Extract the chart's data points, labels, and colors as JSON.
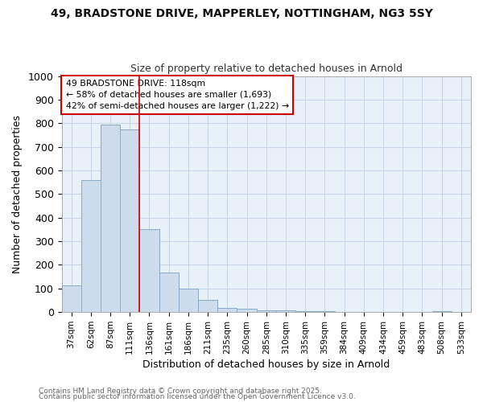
{
  "title1": "49, BRADSTONE DRIVE, MAPPERLEY, NOTTINGHAM, NG3 5SY",
  "title2": "Size of property relative to detached houses in Arnold",
  "xlabel": "Distribution of detached houses by size in Arnold",
  "ylabel": "Number of detached properties",
  "categories": [
    "37sqm",
    "62sqm",
    "87sqm",
    "111sqm",
    "136sqm",
    "161sqm",
    "186sqm",
    "211sqm",
    "235sqm",
    "260sqm",
    "285sqm",
    "310sqm",
    "335sqm",
    "359sqm",
    "384sqm",
    "409sqm",
    "434sqm",
    "459sqm",
    "483sqm",
    "508sqm",
    "533sqm"
  ],
  "values": [
    113,
    560,
    795,
    775,
    350,
    167,
    98,
    52,
    18,
    13,
    8,
    6,
    4,
    3,
    1,
    1,
    1,
    1,
    1,
    5,
    1
  ],
  "bar_color": "#ccdcec",
  "bar_edge_color": "#88aac8",
  "annotation_title": "49 BRADSTONE DRIVE: 118sqm",
  "annotation_line1": "← 58% of detached houses are smaller (1,693)",
  "annotation_line2": "42% of semi-detached houses are larger (1,222) →",
  "annotation_box_facecolor": "#ffffff",
  "annotation_box_edgecolor": "#cc0000",
  "red_line_color": "#cc0000",
  "red_line_x": 3.5,
  "ylim": [
    0,
    1000
  ],
  "yticks": [
    0,
    100,
    200,
    300,
    400,
    500,
    600,
    700,
    800,
    900,
    1000
  ],
  "grid_color": "#c8d8e8",
  "background_color": "#ffffff",
  "plot_bg_color": "#e8f0f8",
  "footnote1": "Contains HM Land Registry data © Crown copyright and database right 2025.",
  "footnote2": "Contains public sector information licensed under the Open Government Licence v3.0."
}
